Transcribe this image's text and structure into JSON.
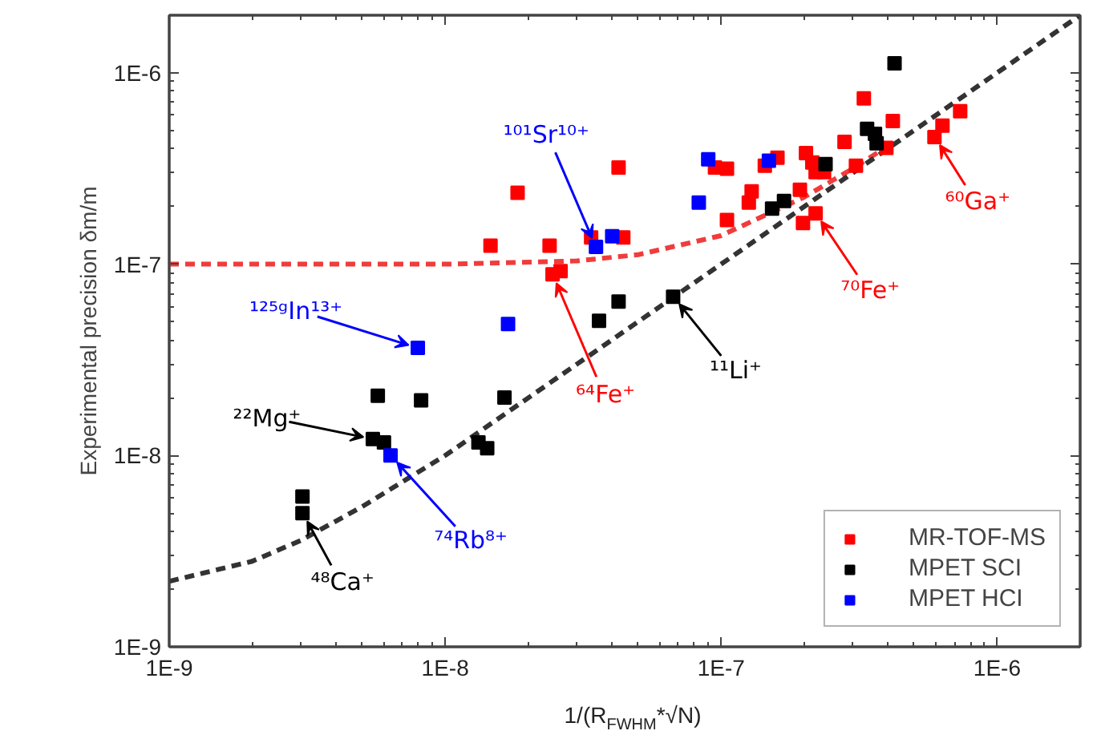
{
  "chart_data": {
    "type": "scatter",
    "xlabel": "1/(R$_{FWHM}$*√N)",
    "ylabel": "Experimental precision δm/m",
    "log": "xy",
    "xlim": [
      1e-09,
      2e-06
    ],
    "ylim": [
      1e-09,
      2e-06
    ],
    "xticks": [
      {
        "value": 1e-09,
        "label": "1E-9"
      },
      {
        "value": 1e-08,
        "label": "1E-8"
      },
      {
        "value": 1e-07,
        "label": "1E-7"
      },
      {
        "value": 1e-06,
        "label": "1E-6"
      }
    ],
    "yticks": [
      {
        "value": 1e-09,
        "label": "1E-9"
      },
      {
        "value": 1e-08,
        "label": "1E-8"
      },
      {
        "value": 1e-07,
        "label": "1E-7"
      },
      {
        "value": 1e-06,
        "label": "1E-6"
      }
    ],
    "grid": false,
    "legend": "bottom right",
    "marker": "square",
    "series": [
      {
        "type": "line",
        "color": "#f03c3c",
        "line_style": "dashed",
        "marker": "none",
        "x": [
          1e-09,
          1e-08,
          3e-08,
          5e-08,
          1e-07,
          2e-07,
          3e-07,
          4e-07
        ],
        "values": [
          1e-07,
          1e-07,
          1.04e-07,
          1.12e-07,
          1.41e-07,
          2.24e-07,
          3.16e-07,
          4.12e-07
        ]
      },
      {
        "type": "line",
        "color": "#333333",
        "line_style": "dashed",
        "marker": "none",
        "x": [
          1e-09,
          2e-09,
          3e-09,
          5e-09,
          1e-08,
          3e-08,
          1e-07,
          3e-07,
          1e-06,
          2e-06
        ],
        "values": [
          2.2e-09,
          2.8e-09,
          3.6e-09,
          5.4e-09,
          1e-08,
          3e-08,
          1e-07,
          3e-07,
          1e-06,
          2e-06
        ]
      },
      {
        "name": "MR-TOF-MS",
        "color": "#ff0000",
        "x": [
          1.46e-08,
          1.83e-08,
          2.39e-08,
          2.45e-08,
          2.62e-08,
          3.38e-08,
          4.25e-08,
          4.42e-08,
          9.5e-08,
          1.05e-07,
          1.05e-07,
          1.26e-07,
          1.29e-07,
          1.44e-07,
          1.6e-07,
          1.93e-07,
          1.98e-07,
          2.2e-07,
          2.03e-07,
          2.14e-07,
          2.2e-07,
          2.36e-07,
          2.8e-07,
          3.08e-07,
          3.29e-07,
          3.97e-07,
          4.19e-07,
          5.93e-07,
          6.34e-07,
          7.35e-07
        ],
        "values": [
          1.25e-07,
          2.36e-07,
          1.25e-07,
          8.85e-08,
          9.2e-08,
          1.38e-07,
          3.2e-07,
          1.38e-07,
          3.2e-07,
          3.15e-07,
          1.7e-07,
          2.1e-07,
          2.4e-07,
          3.27e-07,
          3.6e-07,
          2.45e-07,
          1.64e-07,
          1.84e-07,
          3.81e-07,
          3.4e-07,
          3.03e-07,
          3.03e-07,
          4.36e-07,
          3.27e-07,
          7.35e-07,
          4.05e-07,
          5.6e-07,
          4.62e-07,
          5.29e-07,
          6.3e-07
        ]
      },
      {
        "name": "MPET SCI",
        "color": "#000000",
        "x": [
          3.04e-09,
          3.04e-09,
          5.7e-09,
          5.47e-09,
          6e-09,
          8.18e-09,
          1.32e-08,
          1.42e-08,
          1.64e-08,
          3.61e-08,
          4.25e-08,
          6.7e-08,
          1.53e-07,
          1.69e-07,
          2.39e-07,
          3.38e-07,
          3.61e-07,
          3.66e-07,
          4.25e-07
        ],
        "values": [
          6.1e-09,
          5e-09,
          2.05e-08,
          1.22e-08,
          1.17e-08,
          1.94e-08,
          1.17e-08,
          1.09e-08,
          2.01e-08,
          5.06e-08,
          6.38e-08,
          6.76e-08,
          1.95e-07,
          2.14e-07,
          3.33e-07,
          5.09e-07,
          4.8e-07,
          4.28e-07,
          1.12e-06
        ]
      },
      {
        "name": "MPET HCI",
        "color": "#0000ff",
        "x": [
          7.96e-09,
          1.69e-08,
          6.34e-09,
          3.52e-08,
          4.03e-08,
          8.98e-08,
          1.49e-07,
          8.3e-08
        ],
        "values": [
          3.65e-08,
          4.87e-08,
          1e-08,
          1.23e-07,
          1.4e-07,
          3.53e-07,
          3.47e-07,
          2.1e-07
        ]
      }
    ],
    "annotations": [
      {
        "text": "⁶⁰Ga⁺",
        "x": 5.93e-07,
        "y": 4.62e-07
      },
      {
        "text": "⁷⁰Fe⁺",
        "x": 2.2e-07,
        "y": 1.84e-07
      },
      {
        "text": "⁶⁴Fe⁺",
        "x": 2.45e-08,
        "y": 8.85e-08
      },
      {
        "text": "¹¹Li⁺",
        "x": 6.7e-08,
        "y": 6.76e-08
      },
      {
        "text": "¹⁰¹Sr¹⁰⁺",
        "x": 3.52e-08,
        "y": 1.23e-07
      },
      {
        "text": "¹²⁵ᵍIn¹³⁺",
        "x": 7.96e-09,
        "y": 3.65e-08
      },
      {
        "text": "²²Mg⁺",
        "x": 5.47e-09,
        "y": 1.22e-08
      },
      {
        "text": "⁷⁴Rb⁸⁺",
        "x": 6.34e-09,
        "y": 1e-08
      },
      {
        "text": "⁴⁸Ca⁺",
        "x": 3.04e-09,
        "y": 5e-09
      }
    ]
  }
}
